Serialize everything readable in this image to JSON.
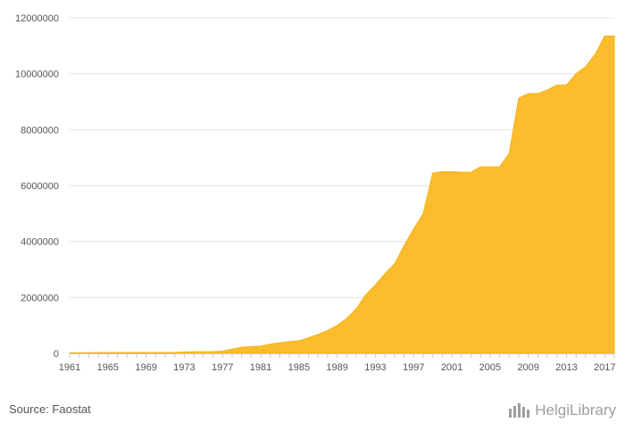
{
  "chart_data": {
    "type": "area",
    "title": "",
    "xlabel": "",
    "ylabel": "",
    "x": [
      1961,
      1962,
      1963,
      1964,
      1965,
      1966,
      1967,
      1968,
      1969,
      1970,
      1971,
      1972,
      1973,
      1974,
      1975,
      1976,
      1977,
      1978,
      1979,
      1980,
      1981,
      1982,
      1983,
      1984,
      1985,
      1986,
      1987,
      1988,
      1989,
      1990,
      1991,
      1992,
      1993,
      1994,
      1995,
      1996,
      1997,
      1998,
      1999,
      2000,
      2001,
      2002,
      2003,
      2004,
      2005,
      2006,
      2007,
      2008,
      2009,
      2010,
      2011,
      2012,
      2013,
      2014,
      2015,
      2016,
      2017,
      2018
    ],
    "values": [
      20000,
      25000,
      25000,
      28000,
      28000,
      30000,
      30000,
      30000,
      30000,
      30000,
      30000,
      30000,
      50000,
      55000,
      60000,
      65000,
      80000,
      150000,
      220000,
      240000,
      260000,
      330000,
      380000,
      420000,
      450000,
      560000,
      680000,
      820000,
      1000000,
      1250000,
      1600000,
      2100000,
      2450000,
      2850000,
      3200000,
      3850000,
      4450000,
      5000000,
      6450000,
      6500000,
      6500000,
      6480000,
      6480000,
      6670000,
      6670000,
      6670000,
      7150000,
      9130000,
      9290000,
      9290000,
      9420000,
      9600000,
      9600000,
      10000000,
      10250000,
      10700000,
      11350000,
      11350000
    ],
    "x_ticks": [
      "1961",
      "1965",
      "1969",
      "1973",
      "1977",
      "1981",
      "1985",
      "1989",
      "1993",
      "1997",
      "2001",
      "2005",
      "2009",
      "2013",
      "2017"
    ],
    "y_ticks": [
      "0",
      "2000000",
      "4000000",
      "6000000",
      "8000000",
      "10000000",
      "12000000"
    ],
    "xlim": [
      1961,
      2018
    ],
    "ylim": [
      0,
      12000000
    ],
    "grid": true,
    "color": "#FBBD2E"
  },
  "source_text": "Source: Faostat",
  "brand": {
    "part1": "Helgi",
    "part2": "Library"
  }
}
